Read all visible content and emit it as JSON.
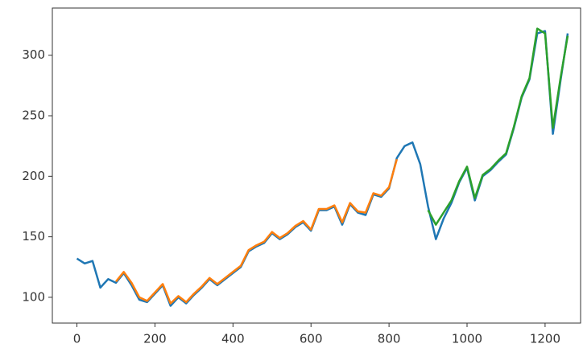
{
  "chart_data": {
    "type": "line",
    "xlim": [
      -63,
      1291
    ],
    "ylim": [
      78.7,
      339
    ],
    "xticks": [
      0,
      200,
      400,
      600,
      800,
      1000,
      1200
    ],
    "yticks": [
      100,
      150,
      200,
      250,
      300
    ],
    "series": [
      {
        "color": "#1f77b4",
        "x": [
          0,
          20,
          40,
          60,
          80,
          100,
          120,
          140,
          160,
          180,
          200,
          220,
          240,
          260,
          280,
          300,
          320,
          340,
          360,
          380,
          400,
          420,
          440,
          460,
          480,
          500,
          520,
          540,
          560,
          580,
          600,
          620,
          640,
          660,
          680,
          700,
          720,
          740,
          760,
          780,
          800,
          820,
          840,
          860,
          880,
          900,
          920,
          940,
          960,
          980,
          1000,
          1020,
          1040,
          1060,
          1080,
          1100,
          1120,
          1140,
          1160,
          1180,
          1200,
          1220,
          1240,
          1258
        ],
        "values": [
          132,
          128,
          130,
          108,
          115,
          112,
          120,
          110,
          98,
          96,
          103,
          110,
          93,
          100,
          95,
          102,
          108,
          115,
          110,
          115,
          120,
          125,
          138,
          142,
          145,
          153,
          148,
          152,
          158,
          162,
          155,
          172,
          172,
          175,
          160,
          177,
          170,
          168,
          185,
          183,
          190,
          215,
          225,
          228,
          210,
          175,
          148,
          165,
          178,
          195,
          207,
          180,
          200,
          205,
          212,
          218,
          240,
          265,
          280,
          318,
          320,
          235,
          280,
          318
        ]
      },
      {
        "color": "#ff7f0e",
        "x": [
          100,
          120,
          140,
          160,
          180,
          200,
          220,
          240,
          260,
          280,
          300,
          320,
          340,
          360,
          380,
          400,
          420,
          440,
          460,
          480,
          500,
          520,
          540,
          560,
          580,
          600,
          620,
          640,
          660,
          680,
          700,
          720,
          740,
          760,
          780,
          800,
          820
        ],
        "values": [
          113,
          121,
          112,
          100,
          97,
          104,
          111,
          95,
          101,
          96,
          103,
          109,
          116,
          111,
          116,
          121,
          126,
          139,
          143,
          146,
          154,
          149,
          153,
          159,
          163,
          156,
          173,
          173,
          176,
          162,
          178,
          171,
          170,
          186,
          184,
          191,
          214
        ]
      },
      {
        "color": "#2ca02c",
        "x": [
          900,
          920,
          940,
          960,
          980,
          1000,
          1020,
          1040,
          1060,
          1080,
          1100,
          1120,
          1140,
          1160,
          1180,
          1200,
          1220,
          1240,
          1258
        ],
        "values": [
          172,
          160,
          170,
          180,
          196,
          208,
          182,
          201,
          206,
          213,
          219,
          241,
          266,
          281,
          322,
          318,
          240,
          282,
          316
        ]
      }
    ]
  }
}
